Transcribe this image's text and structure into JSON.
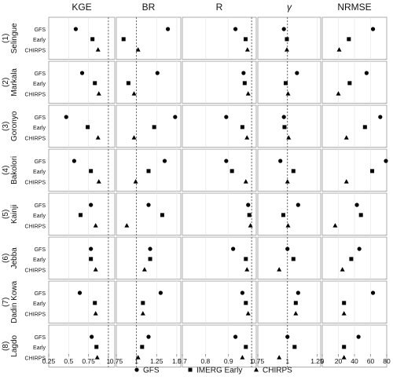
{
  "chart_data": {
    "type": "scatter",
    "metrics": [
      {
        "label": "KGE",
        "xlim": [
          0.25,
          1.08
        ],
        "ticks": [
          "0.25",
          "0.5",
          "0.75",
          "1"
        ],
        "tick_values": [
          0.25,
          0.5,
          0.75,
          1.0
        ],
        "ref": 1.0
      },
      {
        "label": "BR",
        "xlim": [
          0.75,
          1.55
        ],
        "ticks": [
          "0.75",
          "1",
          "1.25",
          "1.5"
        ],
        "tick_values": [
          0.75,
          1.0,
          1.25,
          1.5
        ],
        "ref": 1.0
      },
      {
        "label": "R",
        "xlim": [
          0.7,
          1.02
        ],
        "ticks": [
          "0.7",
          "0.8",
          "0.9",
          "1"
        ],
        "tick_values": [
          0.7,
          0.8,
          0.9,
          1.0
        ],
        "ref": 1.0
      },
      {
        "label": "γ",
        "xlim": [
          0.75,
          1.28
        ],
        "ticks": [
          "0.75",
          "1",
          "1.25"
        ],
        "tick_values": [
          0.75,
          1.0,
          1.25
        ],
        "ref": 1.0
      },
      {
        "label": "NRMSE",
        "xlim": [
          0,
          80
        ],
        "ticks": [
          "0",
          "20",
          "40",
          "60",
          "80"
        ],
        "tick_values": [
          0,
          20,
          40,
          60,
          80
        ],
        "ref": null
      }
    ],
    "rows": [
      "GFS",
      "Early",
      "CHIRPS"
    ],
    "panels": [
      {
        "number": "(1)",
        "name": "Selingue",
        "values": {
          "KGE": [
            0.59,
            0.8,
            0.87
          ],
          "BR": [
            1.39,
            0.84,
            1.02
          ],
          "R": [
            0.93,
            0.974,
            0.982
          ],
          "γ": [
            0.97,
            0.995,
            0.995
          ],
          "NRMSE": [
            63,
            33,
            21
          ]
        }
      },
      {
        "number": "(2)",
        "name": "Markala",
        "values": {
          "KGE": [
            0.67,
            0.83,
            0.88
          ],
          "BR": [
            1.26,
            0.9,
            0.97
          ],
          "R": [
            0.965,
            0.97,
            0.985
          ],
          "γ": [
            1.08,
            0.985,
            1.005
          ],
          "NRMSE": [
            55,
            34,
            20
          ]
        }
      },
      {
        "number": "(3)",
        "name": "Goronyo",
        "values": {
          "KGE": [
            0.47,
            0.74,
            0.87
          ],
          "BR": [
            1.48,
            1.22,
            0.97
          ],
          "R": [
            0.89,
            0.96,
            0.98
          ],
          "γ": [
            0.97,
            0.975,
            1.01
          ],
          "NRMSE": [
            72,
            53,
            30
          ]
        }
      },
      {
        "number": "(4)",
        "name": "Bakolori",
        "values": {
          "KGE": [
            0.57,
            0.78,
            0.88
          ],
          "BR": [
            1.35,
            1.15,
            0.99
          ],
          "R": [
            0.89,
            0.915,
            0.975
          ],
          "γ": [
            0.94,
            1.05,
            1.0
          ],
          "NRMSE": [
            79,
            62,
            30
          ]
        }
      },
      {
        "number": "(5)",
        "name": "Kainji",
        "values": {
          "KGE": [
            0.78,
            0.65,
            0.84
          ],
          "BR": [
            1.15,
            1.32,
            0.88
          ],
          "R": [
            0.985,
            0.99,
            0.995
          ],
          "γ": [
            1.09,
            0.965,
            1.005
          ],
          "NRMSE": [
            43,
            48,
            16
          ]
        }
      },
      {
        "number": "(6)",
        "name": "Jebba",
        "values": {
          "KGE": [
            0.78,
            0.78,
            0.84
          ],
          "BR": [
            1.17,
            1.17,
            1.1
          ],
          "R": [
            0.92,
            0.975,
            0.98
          ],
          "γ": [
            1.0,
            1.05,
            0.93
          ],
          "NRMSE": [
            46,
            36,
            25
          ]
        }
      },
      {
        "number": "(7)",
        "name": "Dadin Kowa",
        "values": {
          "KGE": [
            0.64,
            0.83,
            0.84
          ],
          "BR": [
            1.3,
            1.08,
            1.08
          ],
          "R": [
            0.96,
            0.975,
            0.985
          ],
          "γ": [
            1.09,
            1.07,
            1.07
          ],
          "NRMSE": [
            63,
            27,
            27
          ]
        }
      },
      {
        "number": "(8)",
        "name": "Lagdo",
        "values": {
          "KGE": [
            0.79,
            0.85,
            0.86
          ],
          "BR": [
            1.15,
            1.07,
            1.02
          ],
          "R": [
            0.93,
            0.975,
            0.96
          ],
          "γ": [
            1.0,
            1.06,
            0.93
          ],
          "NRMSE": [
            45,
            27,
            27
          ]
        }
      }
    ],
    "legend": {
      "position": "bottom",
      "items": [
        {
          "label": "GFS",
          "marker": "circle"
        },
        {
          "label": "IMERG Early",
          "marker": "square"
        },
        {
          "label": "CHIRPS",
          "marker": "triangle"
        }
      ]
    },
    "reference_line": "dashed vertical at 1"
  }
}
